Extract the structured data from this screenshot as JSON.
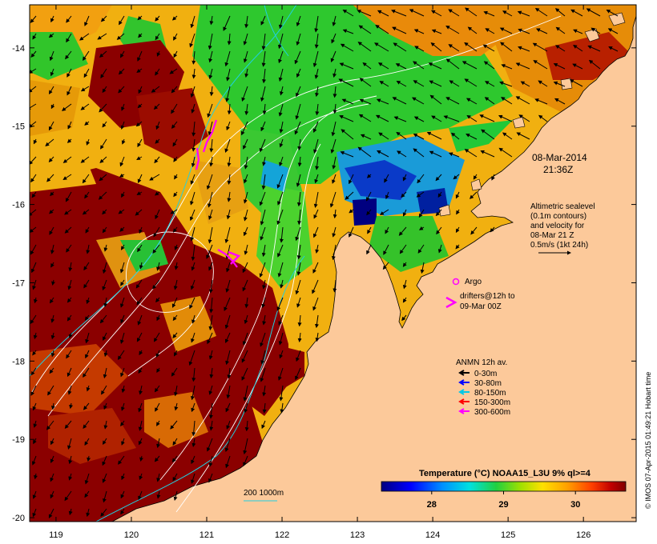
{
  "map": {
    "date_line1": "08-Mar-2014",
    "date_line2": "21:36Z",
    "altimetric": [
      "Altimetric sealevel",
      "(0.1m contours)",
      "and velocity for",
      "08-Mar 21 Z",
      "0.5m/s (1kt 24h)"
    ],
    "argo_label": "Argo",
    "drifters_line1": "drifters@12h to",
    "drifters_line2": "09-Mar 00Z",
    "depth_scale_label": "200  1000m",
    "credit": "© IMOS 07-Apr-2015 01:49:21 Hobart time"
  },
  "legend": {
    "title": "ANMN 12h av.",
    "items": [
      {
        "label": "0-30m",
        "color": "#000000"
      },
      {
        "label": "30-80m",
        "color": "#0000ff"
      },
      {
        "label": "80-150m",
        "color": "#00c8e6"
      },
      {
        "label": "150-300m",
        "color": "#ff0000"
      },
      {
        "label": "300-600m",
        "color": "#ff00ff"
      }
    ]
  },
  "colorbar": {
    "title": "Temperature (°C) NOAA15_L3U 9% ql>=4",
    "ticks": [
      28,
      29,
      30
    ],
    "range": [
      27.3,
      30.7
    ]
  },
  "axes": {
    "x_ticks": [
      119,
      120,
      121,
      122,
      123,
      124,
      125,
      126
    ],
    "y_ticks": [
      -14,
      -15,
      -16,
      -17,
      -18,
      -19,
      -20
    ],
    "x_range": [
      118.65,
      126.7
    ],
    "y_range": [
      -20.05,
      -13.45
    ]
  },
  "colors": {
    "land": "#fcc99a",
    "hot": "#8b0000",
    "mid": "#e68a00",
    "warm": "#f3c00a",
    "cool": "#1fc81f",
    "cold": "#0030d0"
  }
}
